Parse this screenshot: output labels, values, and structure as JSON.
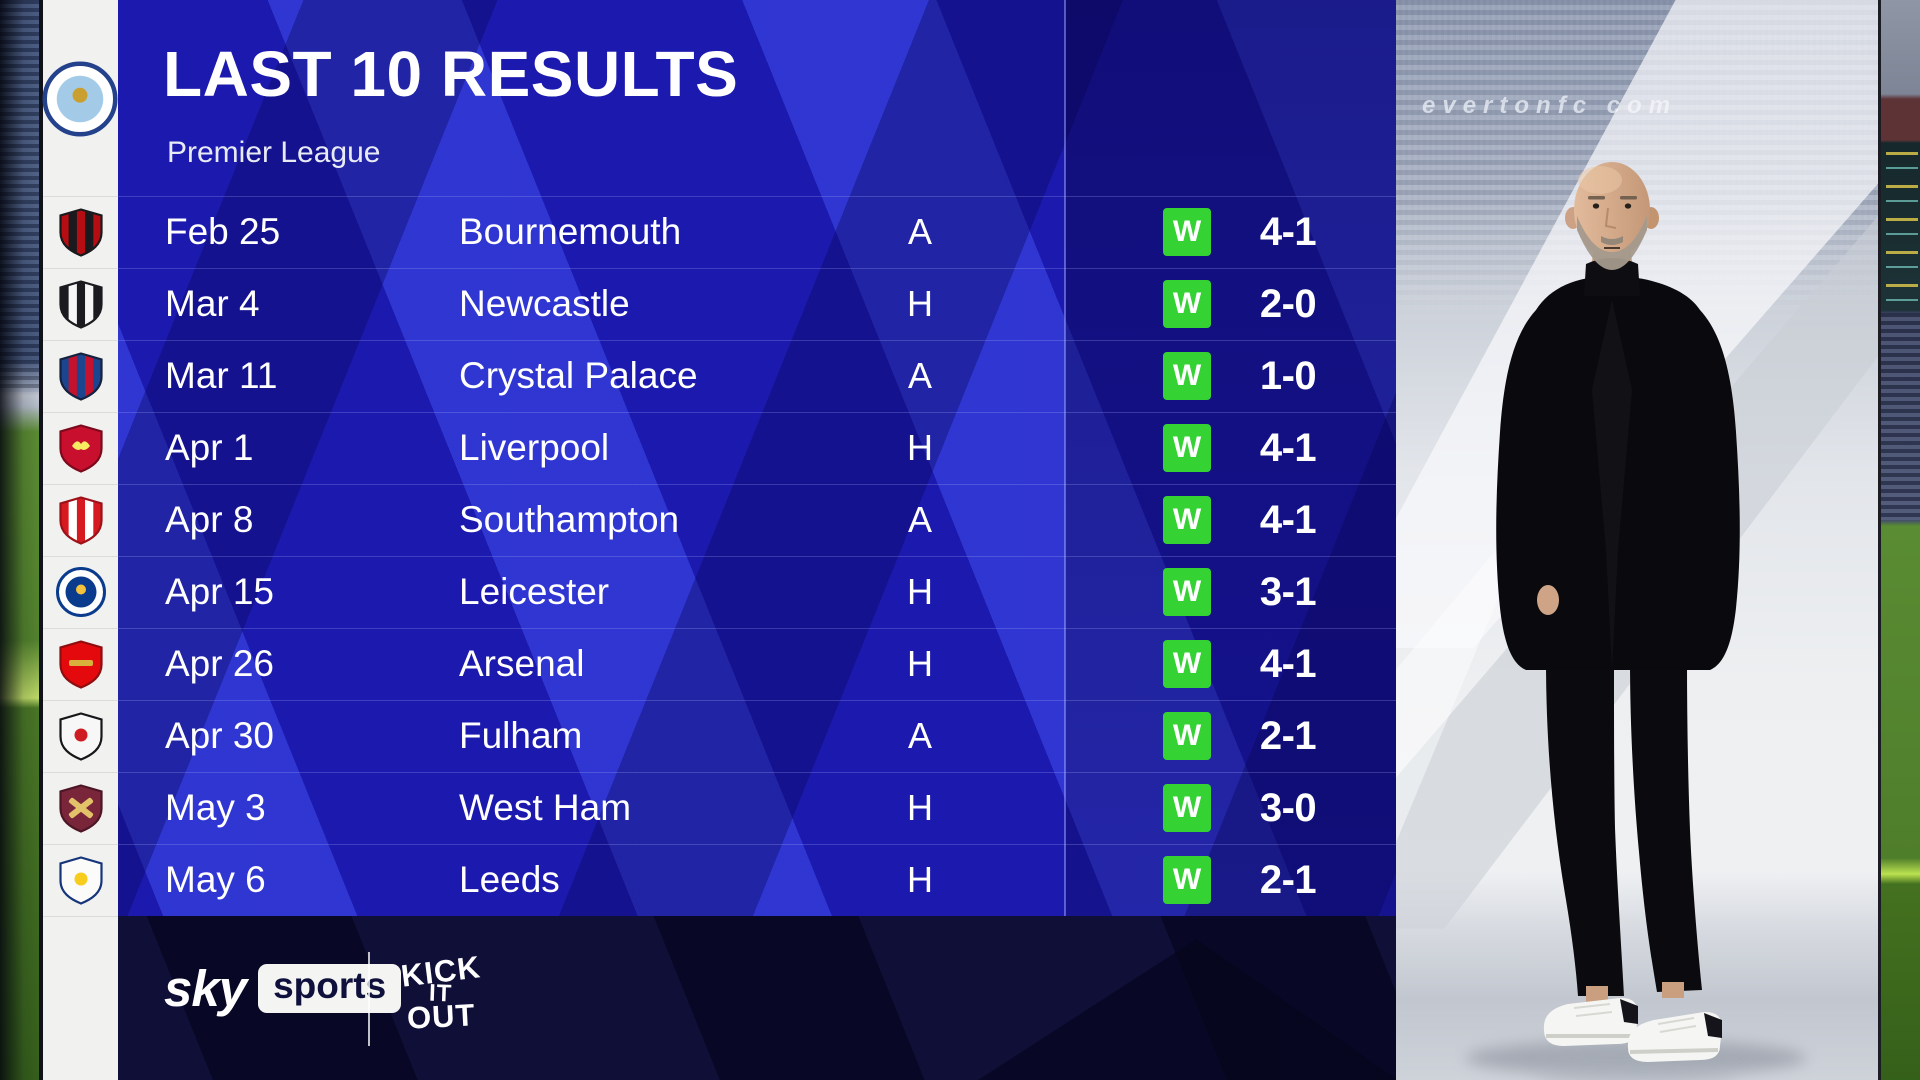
{
  "header": {
    "title": "LAST 10 RESULTS",
    "subtitle": "Premier League",
    "club_crest": {
      "type": "circle",
      "ring": "#ffffff",
      "inner": "#a3cbe8",
      "border": "#24428c",
      "emblem": "#c9a02f"
    }
  },
  "results": {
    "rows": [
      {
        "date": "Feb 25",
        "opponent": "Bournemouth",
        "venue": "A",
        "result": "W",
        "score": "4-1",
        "crest": {
          "type": "stripes",
          "stripes": [
            "#b50d11",
            "#1a1a1e"
          ],
          "border": "#1a1a1e"
        }
      },
      {
        "date": "Mar 4",
        "opponent": "Newcastle",
        "venue": "H",
        "result": "W",
        "score": "2-0",
        "crest": {
          "type": "stripes",
          "stripes": [
            "#1b1b1f",
            "#f5f5f5"
          ],
          "border": "#1b1b1f"
        }
      },
      {
        "date": "Mar 11",
        "opponent": "Crystal Palace",
        "venue": "A",
        "result": "W",
        "score": "1-0",
        "crest": {
          "type": "stripes",
          "stripes": [
            "#1b458f",
            "#c4122e"
          ],
          "border": "#14213f"
        }
      },
      {
        "date": "Apr 1",
        "opponent": "Liverpool",
        "venue": "H",
        "result": "W",
        "score": "4-1",
        "crest": {
          "type": "solid",
          "bg": "#c8102e",
          "border": "#7c0a1c",
          "emblem": "#f6eb61",
          "eshape": "bird"
        }
      },
      {
        "date": "Apr 8",
        "opponent": "Southampton",
        "venue": "A",
        "result": "W",
        "score": "4-1",
        "crest": {
          "type": "stripes",
          "stripes": [
            "#d71920",
            "#ffffff"
          ],
          "border": "#9c1218"
        }
      },
      {
        "date": "Apr 15",
        "opponent": "Leicester",
        "venue": "H",
        "result": "W",
        "score": "3-1",
        "crest": {
          "type": "circle",
          "ring": "#ffffff",
          "inner": "#0a3b8c",
          "border": "#0a3b8c",
          "emblem": "#f5c23d"
        }
      },
      {
        "date": "Apr 26",
        "opponent": "Arsenal",
        "venue": "H",
        "result": "W",
        "score": "4-1",
        "crest": {
          "type": "solid",
          "bg": "#e4090c",
          "border": "#8f0e10",
          "emblem": "#d8b03c",
          "eshape": "bar"
        }
      },
      {
        "date": "Apr 30",
        "opponent": "Fulham",
        "venue": "A",
        "result": "W",
        "score": "2-1",
        "crest": {
          "type": "solid",
          "bg": "#f7f7f7",
          "border": "#17171a",
          "emblem": "#cf1b22",
          "eshape": "circle"
        }
      },
      {
        "date": "May 3",
        "opponent": "West Ham",
        "venue": "H",
        "result": "W",
        "score": "3-0",
        "crest": {
          "type": "solid",
          "bg": "#7a263a",
          "border": "#4d1626",
          "emblem": "#e3c36a",
          "eshape": "x"
        }
      },
      {
        "date": "May 6",
        "opponent": "Leeds",
        "venue": "H",
        "result": "W",
        "score": "2-1",
        "crest": {
          "type": "solid",
          "bg": "#fbfbf9",
          "border": "#16367c",
          "emblem": "#f8cc1c",
          "eshape": "circle"
        }
      }
    ]
  },
  "footer": {
    "sky_word": "sky",
    "sports_word": "sports",
    "kick_it_out": [
      "KICK",
      "IT",
      "OUT"
    ]
  },
  "photo_panel": {
    "stand_text": "evertonfc com"
  },
  "colors": {
    "panel_blue": "#1c1aae",
    "stripe_blue": "#3a46e8",
    "win_green": "#35d233",
    "bottom_navy": "#0f0f37",
    "white_column": "#f1f1ef"
  }
}
